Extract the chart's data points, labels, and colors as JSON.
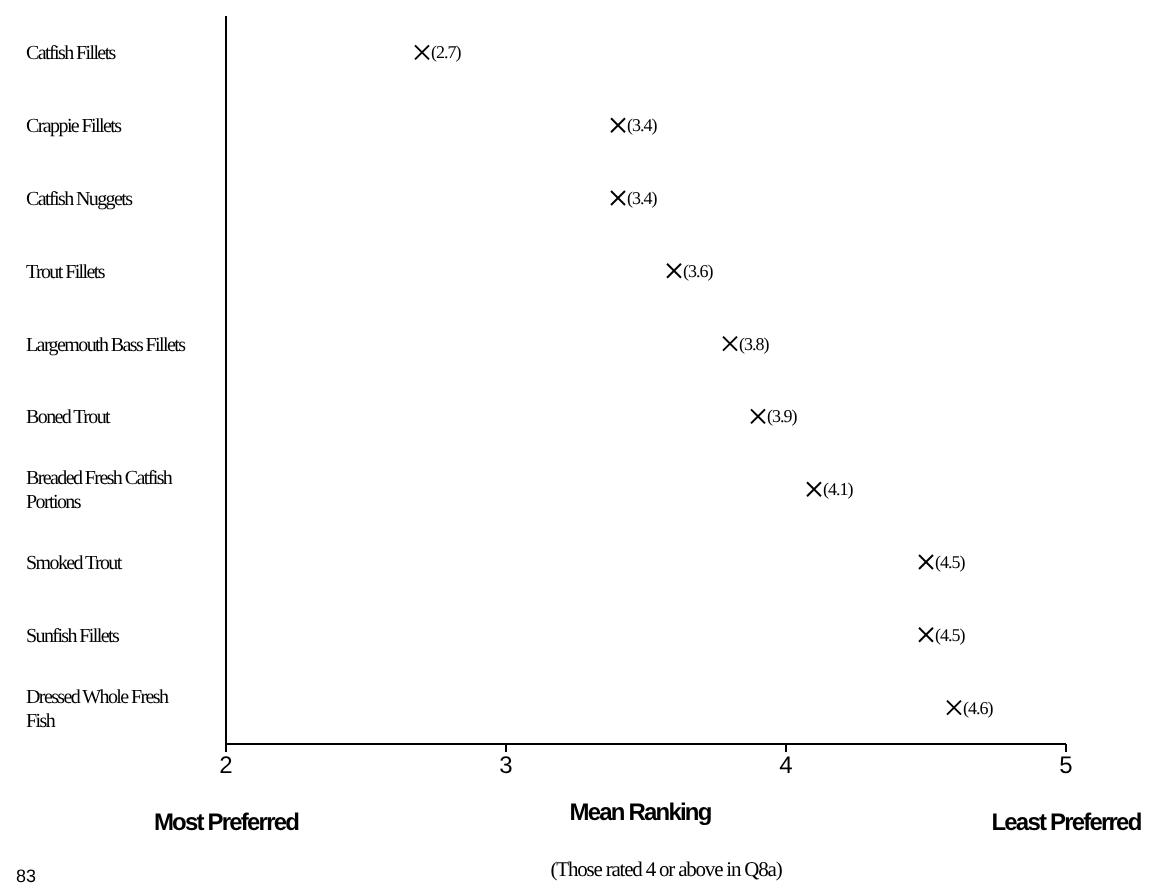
{
  "chart_data": {
    "type": "scatter",
    "orientation": "horizontal",
    "xlabel": "Mean Ranking",
    "categories": [
      "Catfish Fillets",
      "Crappie Fillets",
      "Catfish Nuggets",
      "Trout Fillets",
      "Largemouth Bass Fillets",
      "Boned Trout",
      "Breaded Fresh Catfish Portions",
      "Smoked Trout",
      "Sunfish Fillets",
      "Dressed Whole Fresh Fish"
    ],
    "values": [
      2.7,
      3.4,
      3.4,
      3.6,
      3.8,
      3.9,
      4.1,
      4.5,
      4.5,
      4.6
    ],
    "value_labels": [
      "(2.7)",
      "(3.4)",
      "(3.4)",
      "(3.6)",
      "(3.8)",
      "(3.9)",
      "(4.1)",
      "(4.5)",
      "(4.5)",
      "(4.6)"
    ],
    "color": "#000000",
    "marker": "cross",
    "xlim": [
      2,
      5
    ],
    "xticks": [
      2,
      3,
      4,
      5
    ],
    "annotations": [
      "Most Preferred",
      "Least Preferred",
      "(Those rated 4 or above in Q8a)",
      "83"
    ]
  }
}
